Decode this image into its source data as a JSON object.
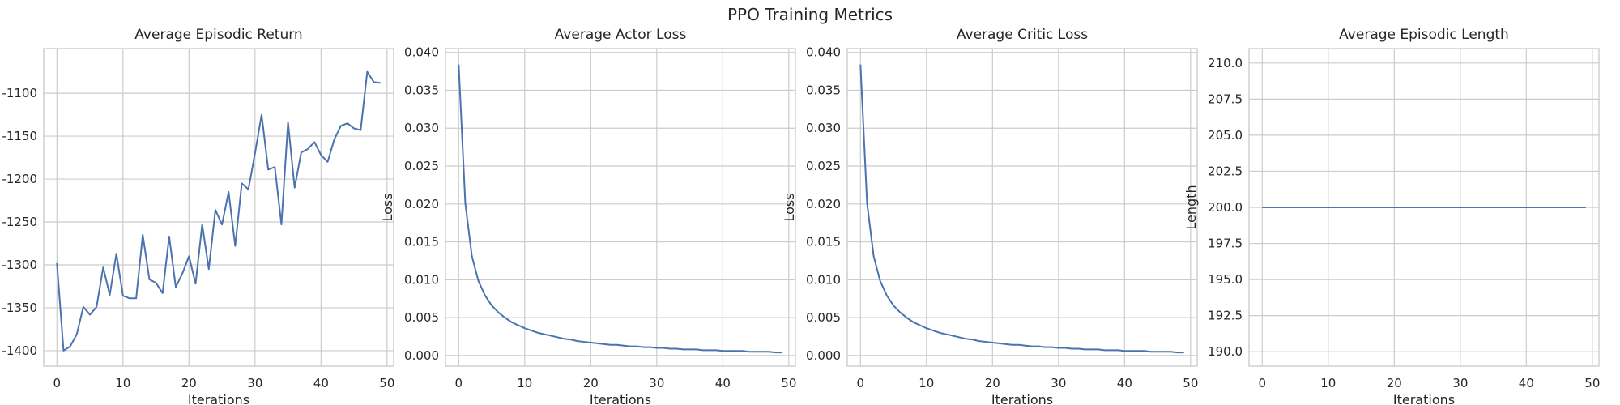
{
  "figure_title": "PPO Training Metrics",
  "chart_data": [
    {
      "type": "line",
      "title": "Average Episodic Return",
      "xlabel": "Iterations",
      "ylabel": "",
      "xlim": [
        -2,
        51
      ],
      "ylim": [
        -1418,
        -1048
      ],
      "xticks": [
        0,
        10,
        20,
        30,
        40,
        50
      ],
      "yticks": [
        -1400,
        -1350,
        -1300,
        -1250,
        -1200,
        -1150,
        -1100
      ],
      "ytick_labels": [
        "-1400",
        "-1350",
        "-1300",
        "-1250",
        "-1200",
        "-1150",
        "-1100"
      ],
      "grid": true,
      "series": [
        {
          "color": "#4c72b0",
          "x": [
            0,
            1,
            2,
            3,
            4,
            5,
            6,
            7,
            8,
            9,
            10,
            11,
            12,
            13,
            14,
            15,
            16,
            17,
            18,
            19,
            20,
            21,
            22,
            23,
            24,
            25,
            26,
            27,
            28,
            29,
            30,
            31,
            32,
            33,
            34,
            35,
            36,
            37,
            38,
            39,
            40,
            41,
            42,
            43,
            44,
            45,
            46,
            47,
            48,
            49
          ],
          "y": [
            -1298,
            -1400,
            -1395,
            -1381,
            -1349,
            -1358,
            -1349,
            -1303,
            -1335,
            -1287,
            -1336,
            -1339,
            -1339,
            -1265,
            -1317,
            -1321,
            -1333,
            -1267,
            -1326,
            -1310,
            -1290,
            -1322,
            -1253,
            -1305,
            -1236,
            -1253,
            -1215,
            -1278,
            -1205,
            -1212,
            -1170,
            -1125,
            -1189,
            -1186,
            -1253,
            -1134,
            -1210,
            -1169,
            -1165,
            -1157,
            -1172,
            -1180,
            -1154,
            -1138,
            -1135,
            -1141,
            -1143,
            -1075,
            -1087,
            -1088
          ]
        }
      ]
    },
    {
      "type": "line",
      "title": "Average Actor Loss",
      "xlabel": "Iterations",
      "ylabel": "Loss",
      "xlim": [
        -2,
        51
      ],
      "ylim": [
        -0.0014,
        0.0405
      ],
      "xticks": [
        0,
        10,
        20,
        30,
        40,
        50
      ],
      "yticks": [
        0.0,
        0.005,
        0.01,
        0.015,
        0.02,
        0.025,
        0.03,
        0.035,
        0.04
      ],
      "ytick_labels": [
        "0.000",
        "0.005",
        "0.010",
        "0.015",
        "0.020",
        "0.025",
        "0.030",
        "0.035",
        "0.040"
      ],
      "grid": true,
      "series": [
        {
          "color": "#4c72b0",
          "x": [
            0,
            1,
            2,
            3,
            4,
            5,
            6,
            7,
            8,
            9,
            10,
            11,
            12,
            13,
            14,
            15,
            16,
            17,
            18,
            19,
            20,
            21,
            22,
            23,
            24,
            25,
            26,
            27,
            28,
            29,
            30,
            31,
            32,
            33,
            34,
            35,
            36,
            37,
            38,
            39,
            40,
            41,
            42,
            43,
            44,
            45,
            46,
            47,
            48,
            49
          ],
          "y": [
            0.0384,
            0.0201,
            0.0131,
            0.0098,
            0.0079,
            0.0066,
            0.0057,
            0.005,
            0.0044,
            0.004,
            0.0036,
            0.0033,
            0.003,
            0.0028,
            0.0026,
            0.0024,
            0.0022,
            0.0021,
            0.0019,
            0.0018,
            0.0017,
            0.0016,
            0.0015,
            0.0014,
            0.0014,
            0.0013,
            0.0012,
            0.0012,
            0.0011,
            0.0011,
            0.001,
            0.001,
            0.0009,
            0.0009,
            0.0008,
            0.0008,
            0.0008,
            0.0007,
            0.0007,
            0.0007,
            0.0006,
            0.0006,
            0.0006,
            0.0006,
            0.0005,
            0.0005,
            0.0005,
            0.0005,
            0.0004,
            0.0004
          ]
        }
      ]
    },
    {
      "type": "line",
      "title": "Average Critic Loss",
      "xlabel": "Iterations",
      "ylabel": "Loss",
      "xlim": [
        -2,
        51
      ],
      "ylim": [
        -0.0014,
        0.0405
      ],
      "xticks": [
        0,
        10,
        20,
        30,
        40,
        50
      ],
      "yticks": [
        0.0,
        0.005,
        0.01,
        0.015,
        0.02,
        0.025,
        0.03,
        0.035,
        0.04
      ],
      "ytick_labels": [
        "0.000",
        "0.005",
        "0.010",
        "0.015",
        "0.020",
        "0.025",
        "0.030",
        "0.035",
        "0.040"
      ],
      "grid": true,
      "series": [
        {
          "color": "#4c72b0",
          "x": [
            0,
            1,
            2,
            3,
            4,
            5,
            6,
            7,
            8,
            9,
            10,
            11,
            12,
            13,
            14,
            15,
            16,
            17,
            18,
            19,
            20,
            21,
            22,
            23,
            24,
            25,
            26,
            27,
            28,
            29,
            30,
            31,
            32,
            33,
            34,
            35,
            36,
            37,
            38,
            39,
            40,
            41,
            42,
            43,
            44,
            45,
            46,
            47,
            48,
            49
          ],
          "y": [
            0.0384,
            0.0201,
            0.0131,
            0.0098,
            0.0079,
            0.0066,
            0.0057,
            0.005,
            0.0044,
            0.004,
            0.0036,
            0.0033,
            0.003,
            0.0028,
            0.0026,
            0.0024,
            0.0022,
            0.0021,
            0.0019,
            0.0018,
            0.0017,
            0.0016,
            0.0015,
            0.0014,
            0.0014,
            0.0013,
            0.0012,
            0.0012,
            0.0011,
            0.0011,
            0.001,
            0.001,
            0.0009,
            0.0009,
            0.0008,
            0.0008,
            0.0008,
            0.0007,
            0.0007,
            0.0007,
            0.0006,
            0.0006,
            0.0006,
            0.0006,
            0.0005,
            0.0005,
            0.0005,
            0.0005,
            0.0004,
            0.0004
          ]
        }
      ]
    },
    {
      "type": "line",
      "title": "Average Episodic Length",
      "xlabel": "Iterations",
      "ylabel": "Length",
      "xlim": [
        -2,
        51
      ],
      "ylim": [
        189,
        211
      ],
      "xticks": [
        0,
        10,
        20,
        30,
        40,
        50
      ],
      "yticks": [
        190.0,
        192.5,
        195.0,
        197.5,
        200.0,
        202.5,
        205.0,
        207.5,
        210.0
      ],
      "ytick_labels": [
        "190.0",
        "192.5",
        "195.0",
        "197.5",
        "200.0",
        "202.5",
        "205.0",
        "207.5",
        "210.0"
      ],
      "grid": true,
      "series": [
        {
          "color": "#4c72b0",
          "x": [
            0,
            49
          ],
          "y": [
            200,
            200
          ]
        }
      ]
    }
  ]
}
